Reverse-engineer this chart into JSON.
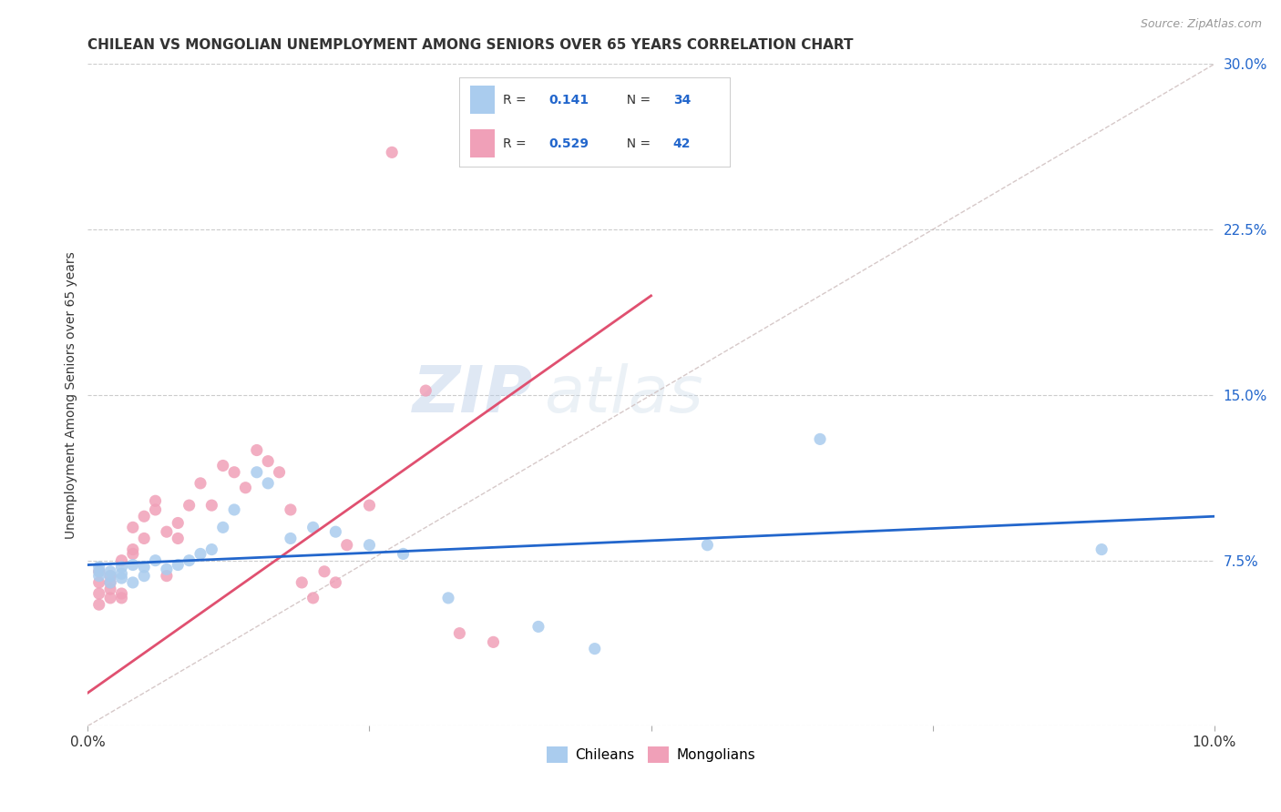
{
  "title": "CHILEAN VS MONGOLIAN UNEMPLOYMENT AMONG SENIORS OVER 65 YEARS CORRELATION CHART",
  "source": "Source: ZipAtlas.com",
  "ylabel": "Unemployment Among Seniors over 65 years",
  "xlim": [
    0,
    0.1
  ],
  "ylim": [
    0,
    0.3
  ],
  "xticks": [
    0.0,
    0.025,
    0.05,
    0.075,
    0.1
  ],
  "xticklabels": [
    "0.0%",
    "",
    "",
    "",
    "10.0%"
  ],
  "yticks": [
    0.0,
    0.075,
    0.15,
    0.225,
    0.3
  ],
  "yticklabels": [
    "",
    "7.5%",
    "15.0%",
    "22.5%",
    "30.0%"
  ],
  "chilean_R": "0.141",
  "chilean_N": "34",
  "mongolian_R": "0.529",
  "mongolian_N": "42",
  "background_color": "#ffffff",
  "grid_color": "#cccccc",
  "chilean_color": "#aaccee",
  "mongolian_color": "#f0a0b8",
  "chilean_line_color": "#2266cc",
  "mongolian_line_color": "#e05070",
  "ref_line_color": "#ccbbbb",
  "legend_label_1": "Chileans",
  "legend_label_2": "Mongolians",
  "chileans_x": [
    0.001,
    0.001,
    0.001,
    0.002,
    0.002,
    0.002,
    0.003,
    0.003,
    0.003,
    0.004,
    0.004,
    0.005,
    0.005,
    0.006,
    0.007,
    0.008,
    0.009,
    0.01,
    0.011,
    0.012,
    0.013,
    0.015,
    0.016,
    0.018,
    0.02,
    0.022,
    0.025,
    0.028,
    0.032,
    0.04,
    0.045,
    0.055,
    0.065,
    0.09
  ],
  "chileans_y": [
    0.07,
    0.068,
    0.072,
    0.065,
    0.07,
    0.068,
    0.067,
    0.072,
    0.069,
    0.065,
    0.073,
    0.072,
    0.068,
    0.075,
    0.071,
    0.073,
    0.075,
    0.078,
    0.08,
    0.09,
    0.098,
    0.115,
    0.11,
    0.085,
    0.09,
    0.088,
    0.082,
    0.078,
    0.058,
    0.045,
    0.035,
    0.082,
    0.13,
    0.08
  ],
  "mongolians_x": [
    0.001,
    0.001,
    0.001,
    0.001,
    0.002,
    0.002,
    0.002,
    0.002,
    0.003,
    0.003,
    0.003,
    0.004,
    0.004,
    0.004,
    0.005,
    0.005,
    0.006,
    0.006,
    0.007,
    0.007,
    0.008,
    0.008,
    0.009,
    0.01,
    0.011,
    0.012,
    0.013,
    0.014,
    0.015,
    0.016,
    0.017,
    0.018,
    0.019,
    0.02,
    0.021,
    0.022,
    0.023,
    0.025,
    0.027,
    0.03,
    0.033,
    0.036
  ],
  "mongolians_y": [
    0.065,
    0.06,
    0.07,
    0.055,
    0.062,
    0.068,
    0.058,
    0.065,
    0.06,
    0.058,
    0.075,
    0.08,
    0.09,
    0.078,
    0.095,
    0.085,
    0.098,
    0.102,
    0.068,
    0.088,
    0.092,
    0.085,
    0.1,
    0.11,
    0.1,
    0.118,
    0.115,
    0.108,
    0.125,
    0.12,
    0.115,
    0.098,
    0.065,
    0.058,
    0.07,
    0.065,
    0.082,
    0.1,
    0.26,
    0.152,
    0.042,
    0.038
  ],
  "watermark_zip": "ZIP",
  "watermark_atlas": "atlas",
  "title_fontsize": 11,
  "axis_label_fontsize": 10,
  "tick_fontsize": 11,
  "legend_fontsize": 11,
  "source_fontsize": 9
}
